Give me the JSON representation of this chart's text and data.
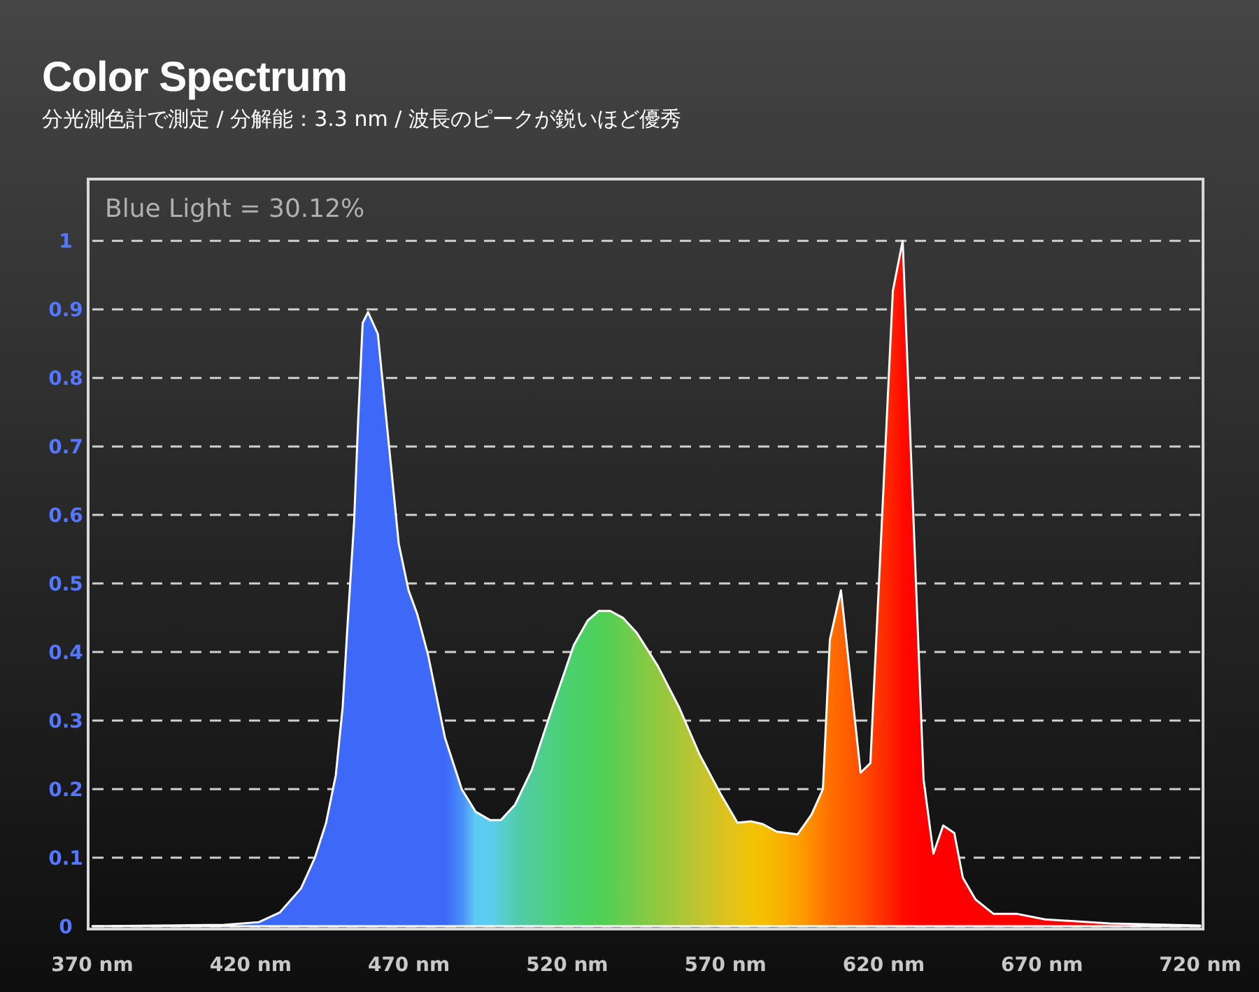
{
  "chart_data": {
    "type": "area",
    "title": "Color Spectrum",
    "subtitle": "分光測色計で測定 / 分解能：3.3 nm / 波長のピークが鋭いほど優秀",
    "annotations": [
      "Blue Light = 30.12%"
    ],
    "x": [
      370,
      411.6,
      422.6,
      429.2,
      435.9,
      440.3,
      443.8,
      446.9,
      449.1,
      450.5,
      452.7,
      454,
      455.4,
      457.1,
      460.2,
      466.8,
      469.9,
      472.6,
      476.1,
      481.4,
      486.7,
      491.1,
      495.6,
      499.1,
      503.5,
      508.8,
      515.4,
      522.1,
      526.5,
      530,
      533.6,
      537.6,
      542,
      548.6,
      555.3,
      561.9,
      568.5,
      573.8,
      578.2,
      581.8,
      586.2,
      592.8,
      597.2,
      600.8,
      603,
      606.5,
      612.7,
      615.8,
      622.9,
      626,
      632.6,
      635.7,
      638.8,
      642.3,
      645,
      649,
      654.7,
      662.2,
      671,
      691.4,
      720
    ],
    "series": [
      {
        "values": [
          0,
          0.002,
          0.006,
          0.02,
          0.055,
          0.1,
          0.15,
          0.22,
          0.32,
          0.43,
          0.59,
          0.74,
          0.88,
          0.896,
          0.864,
          0.558,
          0.49,
          0.456,
          0.395,
          0.275,
          0.2,
          0.167,
          0.155,
          0.155,
          0.177,
          0.228,
          0.32,
          0.41,
          0.446,
          0.46,
          0.46,
          0.45,
          0.428,
          0.38,
          0.32,
          0.25,
          0.193,
          0.151,
          0.153,
          0.149,
          0.138,
          0.134,
          0.163,
          0.2,
          0.418,
          0.49,
          0.224,
          0.238,
          0.927,
          1.0,
          0.214,
          0.106,
          0.147,
          0.136,
          0.071,
          0.039,
          0.018,
          0.018,
          0.01,
          0.004,
          0.001
        ],
        "colors": [
          "#3d68f8",
          "#3d68f8",
          "#3d68f8",
          "#3d68f8",
          "#3d68f8",
          "#3d68f8",
          "#3d68f8",
          "#3d68f8",
          "#3d68f8",
          "#3d68f8",
          "#3d68f8",
          "#3d68f8",
          "#3d68f8",
          "#3d68f8",
          "#3d68f8",
          "#3d68f8",
          "#3d68f8",
          "#3d68f8",
          "#3d68f8",
          "#3d68f8",
          "#4a8ef8",
          "#5ccbf2",
          "#5ccdf0",
          "#57cdd0",
          "#52ccb0",
          "#50cd98",
          "#4ccf80",
          "#4bd06a",
          "#4cd060",
          "#4fd058",
          "#58cf55",
          "#66cd50",
          "#78cb48",
          "#90c840",
          "#a8c63a",
          "#c0c430",
          "#d8c220",
          "#e6c215",
          "#f0c208",
          "#f5c000",
          "#f8b400",
          "#fca000",
          "#ff8c00",
          "#ff7a00",
          "#ff7000",
          "#ff6400",
          "#ff5000",
          "#ff4000",
          "#ff2000",
          "#ff0a00",
          "#ff0000",
          "#ff0000",
          "#ff0000",
          "#ff0000",
          "#ff0000",
          "#ff0000",
          "#ff0000",
          "#ff0000",
          "#ff0000",
          "#ff0000",
          "#ff0000"
        ]
      }
    ],
    "xlim": [
      370,
      720
    ],
    "xticks": [
      {
        "value": 370,
        "label": "370 nm"
      },
      {
        "value": 420,
        "label": "420 nm"
      },
      {
        "value": 470,
        "label": "470 nm"
      },
      {
        "value": 520,
        "label": "520 nm"
      },
      {
        "value": 570,
        "label": "570 nm"
      },
      {
        "value": 620,
        "label": "620 nm"
      },
      {
        "value": 670,
        "label": "670 nm"
      },
      {
        "value": 720,
        "label": "720 nm"
      }
    ],
    "ylim": [
      0,
      1.09
    ],
    "yticks": [
      0,
      0.1,
      0.2,
      0.3,
      0.4,
      0.5,
      0.6,
      0.7,
      0.8,
      0.9,
      1
    ],
    "grid": "y",
    "line_style": "solid"
  }
}
